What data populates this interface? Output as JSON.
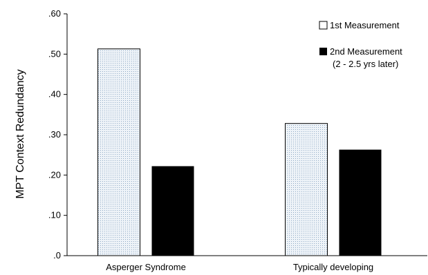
{
  "chart_data": {
    "type": "bar",
    "title": "",
    "ylabel": "MPT Context Redundancy",
    "xlabel": "",
    "categories": [
      "Asperger Syndrome",
      "Typically developing"
    ],
    "ylim": [
      0,
      0.6
    ],
    "yticks": [
      ".0",
      ".10",
      ".20",
      ".30",
      ".40",
      ".50",
      ".60"
    ],
    "grid": false,
    "legend_position": "top-right",
    "series": [
      {
        "name": "1st Measurement",
        "values": [
          0.513,
          0.328
        ],
        "fill": "dotted",
        "color": "#e9f0f6"
      },
      {
        "name": "2nd Measurement",
        "name_line2": "(2 - 2.5 yrs later)",
        "values": [
          0.222,
          0.263
        ],
        "fill": "solid",
        "color": "#000000"
      }
    ]
  }
}
